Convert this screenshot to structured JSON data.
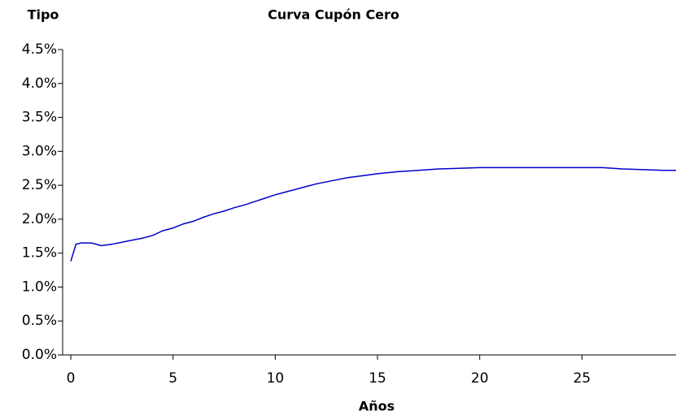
{
  "chart_data": {
    "type": "line",
    "title": "Curva Cupón Cero",
    "ylabel": "Tipo",
    "xlabel": "Años",
    "x": [
      0,
      0.25,
      0.5,
      1,
      1.5,
      2,
      2.5,
      3,
      3.5,
      4,
      4.5,
      5,
      5.5,
      6,
      6.5,
      7,
      7.5,
      8,
      8.5,
      9,
      9.5,
      10,
      10.5,
      11,
      11.5,
      12,
      12.5,
      13,
      13.5,
      14,
      14.5,
      15,
      16,
      17,
      18,
      19,
      20,
      21,
      22,
      25,
      26,
      27,
      28,
      29,
      29.6
    ],
    "series": [
      {
        "name": "Curva Cupón Cero",
        "color": "#0000cc",
        "values": [
          1.38,
          1.63,
          1.65,
          1.65,
          1.61,
          1.63,
          1.66,
          1.69,
          1.72,
          1.76,
          1.83,
          1.87,
          1.93,
          1.97,
          2.03,
          2.08,
          2.12,
          2.17,
          2.21,
          2.26,
          2.31,
          2.36,
          2.4,
          2.44,
          2.48,
          2.52,
          2.55,
          2.58,
          2.61,
          2.63,
          2.65,
          2.67,
          2.7,
          2.72,
          2.74,
          2.75,
          2.76,
          2.76,
          2.76,
          2.76,
          2.76,
          2.74,
          2.73,
          2.72,
          2.72
        ]
      }
    ],
    "xlim": [
      -0.4,
      29.6
    ],
    "xticks": [
      0,
      5,
      10,
      15,
      20,
      25
    ],
    "ylim": [
      0,
      4.5
    ],
    "yticks": [
      {
        "value": 0,
        "label": "0.0%"
      },
      {
        "value": 0.5,
        "label": "0.5%"
      },
      {
        "value": 1,
        "label": "1.0%"
      },
      {
        "value": 1.5,
        "label": "1.5%"
      },
      {
        "value": 2,
        "label": "2.0%"
      },
      {
        "value": 2.5,
        "label": "2.5%"
      },
      {
        "value": 3,
        "label": "3.0%"
      },
      {
        "value": 3.5,
        "label": "3.5%"
      },
      {
        "value": 4,
        "label": "4.0%"
      },
      {
        "value": 4.5,
        "label": "4.5%"
      }
    ],
    "grid": false
  }
}
